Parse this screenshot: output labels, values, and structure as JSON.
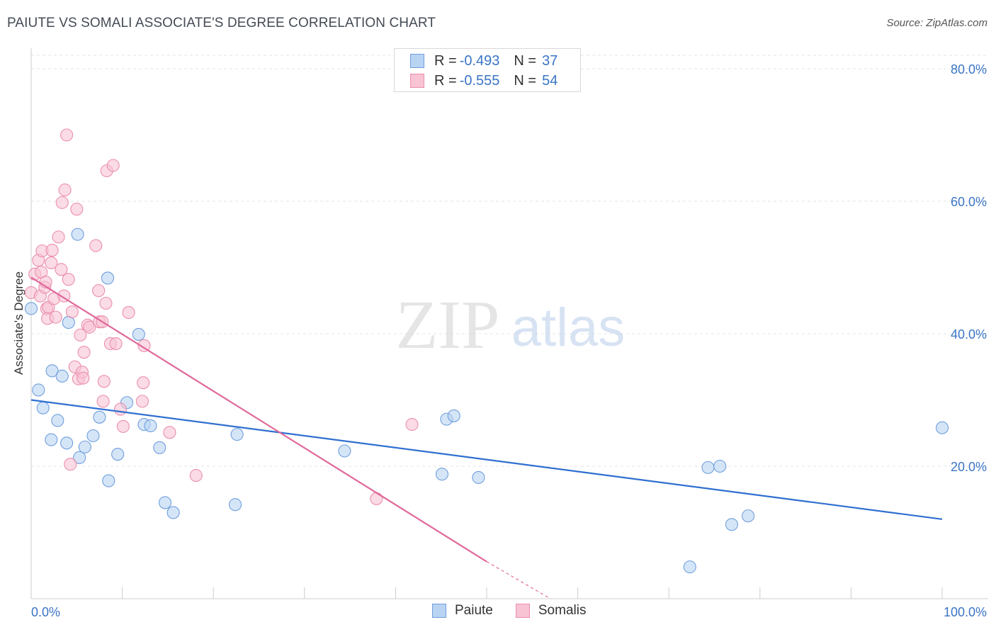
{
  "title": "PAIUTE VS SOMALI ASSOCIATE'S DEGREE CORRELATION CHART",
  "source": "Source: ZipAtlas.com",
  "watermark": {
    "zip": "ZIP",
    "atlas": "atlas"
  },
  "colors": {
    "paiute_fill": "#b9d3f3",
    "paiute_stroke": "#6f9fdc",
    "paiute_line": "#2f6fd0",
    "somali_fill": "#f8c3d3",
    "somali_stroke": "#ea8fae",
    "somali_line": "#e0689a",
    "tick_label": "#3a75c4"
  },
  "legend": {
    "rows": [
      {
        "r_label": "R =",
        "r_value": "-0.493",
        "n_label": "N =",
        "n_value": "37"
      },
      {
        "r_label": "R =",
        "r_value": "-0.555",
        "n_label": "N =",
        "n_value": "54"
      }
    ]
  },
  "bottom_legend": [
    "Paiute",
    "Somalis"
  ],
  "chart_data": {
    "type": "scatter",
    "title": "PAIUTE VS SOMALI ASSOCIATE'S DEGREE CORRELATION CHART",
    "xlabel": "",
    "ylabel": "Associate's Degree",
    "xlim": [
      0,
      100
    ],
    "ylim": [
      0,
      80
    ],
    "x_tick_labels": [
      "0.0%",
      "100.0%"
    ],
    "y_tick_labels": [
      "20.0%",
      "40.0%",
      "60.0%",
      "80.0%"
    ],
    "y_ticks": [
      20,
      40,
      60,
      80
    ],
    "grid": "horizontal dashed",
    "legend_position": "top-center",
    "series": [
      {
        "name": "Paiute",
        "r": -0.493,
        "n": 37,
        "trend": {
          "x": [
            0,
            100
          ],
          "y": [
            30.0,
            12.0
          ]
        },
        "points": [
          [
            0,
            43.8
          ],
          [
            0.8,
            31.5
          ],
          [
            1.3,
            28.8
          ],
          [
            2.2,
            24.0
          ],
          [
            2.3,
            34.4
          ],
          [
            2.9,
            26.9
          ],
          [
            3.4,
            33.6
          ],
          [
            3.9,
            23.5
          ],
          [
            4.1,
            41.7
          ],
          [
            5.1,
            55.0
          ],
          [
            5.3,
            21.3
          ],
          [
            5.9,
            22.9
          ],
          [
            6.8,
            24.6
          ],
          [
            7.5,
            27.4
          ],
          [
            8.4,
            48.4
          ],
          [
            8.5,
            17.8
          ],
          [
            9.5,
            21.8
          ],
          [
            10.5,
            29.6
          ],
          [
            11.8,
            39.9
          ],
          [
            12.4,
            26.3
          ],
          [
            13.1,
            26.1
          ],
          [
            14.1,
            22.8
          ],
          [
            14.7,
            14.5
          ],
          [
            15.6,
            13.0
          ],
          [
            22.4,
            14.2
          ],
          [
            22.6,
            24.8
          ],
          [
            34.4,
            22.3
          ],
          [
            45.1,
            18.8
          ],
          [
            45.6,
            27.1
          ],
          [
            46.4,
            27.6
          ],
          [
            49.1,
            18.3
          ],
          [
            72.3,
            4.8
          ],
          [
            74.3,
            19.8
          ],
          [
            75.6,
            20.0
          ],
          [
            76.9,
            11.2
          ],
          [
            78.7,
            12.5
          ],
          [
            100,
            25.8
          ]
        ]
      },
      {
        "name": "Somalis",
        "r": -0.555,
        "n": 54,
        "trend": {
          "x": [
            0,
            50
          ],
          "y": [
            48.5,
            5.6
          ]
        },
        "trend_dashed": {
          "x": [
            50,
            57
          ],
          "y": [
            5.6,
            -0.4
          ]
        },
        "points": [
          [
            0,
            46.2
          ],
          [
            0.4,
            49.0
          ],
          [
            0.8,
            51.1
          ],
          [
            1.0,
            45.7
          ],
          [
            1.1,
            49.3
          ],
          [
            1.2,
            52.5
          ],
          [
            1.5,
            47.0
          ],
          [
            1.6,
            47.8
          ],
          [
            1.7,
            43.8
          ],
          [
            1.8,
            42.3
          ],
          [
            1.9,
            44.0
          ],
          [
            2.2,
            50.7
          ],
          [
            2.3,
            52.6
          ],
          [
            2.5,
            45.3
          ],
          [
            2.7,
            42.5
          ],
          [
            3.0,
            54.6
          ],
          [
            3.3,
            49.7
          ],
          [
            3.4,
            59.8
          ],
          [
            3.6,
            45.7
          ],
          [
            3.7,
            61.7
          ],
          [
            3.9,
            70.0
          ],
          [
            4.1,
            48.2
          ],
          [
            4.3,
            20.3
          ],
          [
            4.5,
            43.3
          ],
          [
            4.8,
            35.0
          ],
          [
            5.0,
            58.8
          ],
          [
            5.2,
            33.2
          ],
          [
            5.4,
            39.8
          ],
          [
            5.6,
            34.2
          ],
          [
            5.7,
            33.3
          ],
          [
            5.8,
            37.2
          ],
          [
            6.2,
            41.3
          ],
          [
            6.4,
            41.0
          ],
          [
            7.1,
            53.3
          ],
          [
            7.4,
            46.5
          ],
          [
            7.5,
            41.8
          ],
          [
            7.8,
            41.8
          ],
          [
            7.9,
            29.8
          ],
          [
            8.0,
            32.8
          ],
          [
            8.2,
            44.6
          ],
          [
            8.3,
            64.6
          ],
          [
            8.7,
            38.5
          ],
          [
            9.0,
            65.4
          ],
          [
            9.3,
            38.5
          ],
          [
            9.8,
            28.6
          ],
          [
            10.1,
            26.0
          ],
          [
            10.7,
            43.2
          ],
          [
            12.2,
            29.8
          ],
          [
            12.3,
            32.6
          ],
          [
            12.4,
            38.2
          ],
          [
            15.2,
            25.1
          ],
          [
            18.1,
            18.6
          ],
          [
            37.9,
            15.1
          ],
          [
            41.8,
            26.3
          ]
        ]
      }
    ]
  }
}
